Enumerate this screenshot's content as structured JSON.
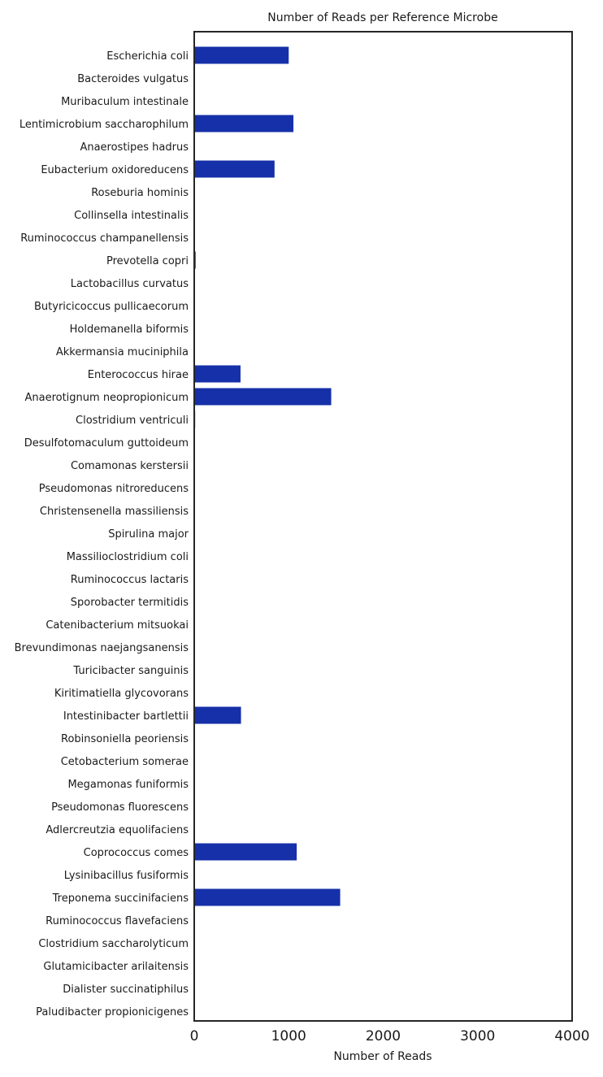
{
  "chart_data": {
    "type": "bar",
    "orientation": "horizontal",
    "title": "Number of Reads per Reference Microbe",
    "xlabel": "Number of Reads",
    "ylabel": "",
    "xlim": [
      0,
      4000
    ],
    "xticks": [
      "0",
      "1000",
      "2000",
      "3000",
      "4000"
    ],
    "grid": false,
    "bar_color": "#1530a8",
    "categories": [
      "Escherichia coli",
      "Bacteroides vulgatus",
      "Muribaculum intestinale",
      "Lentimicrobium saccharophilum",
      "Anaerostipes hadrus",
      "Eubacterium oxidoreducens",
      "Roseburia hominis",
      "Collinsella intestinalis",
      "Ruminococcus champanellensis",
      "Prevotella copri",
      "Lactobacillus curvatus",
      "Butyricicoccus pullicaecorum",
      "Holdemanella biformis",
      "Akkermansia muciniphila",
      "Enterococcus hirae",
      "Anaerotignum neopropionicum",
      "Clostridium ventriculi",
      "Desulfotomaculum guttoideum",
      "Comamonas kerstersii",
      "Pseudomonas nitroreducens",
      "Christensenella massiliensis",
      "Spirulina major",
      "Massilioclostridium coli",
      "Ruminococcus lactaris",
      "Sporobacter termitidis",
      "Catenibacterium mitsuokai",
      "Brevundimonas naejangsanensis",
      "Turicibacter sanguinis",
      "Kiritimatiella glycovorans",
      "Intestinibacter bartlettii",
      "Robinsoniella peoriensis",
      "Cetobacterium somerae",
      "Megamonas funiformis",
      "Pseudomonas fluorescens",
      "Adlercreutzia equolifaciens",
      "Coprococcus comes",
      "Lysinibacillus fusiformis",
      "Treponema succinifaciens",
      "Ruminococcus flavefaciens",
      "Clostridium saccharolyticum",
      "Glutamicibacter arilaitensis",
      "Dialister succinatiphilus",
      "Paludibacter propionicigenes"
    ],
    "values": [
      1000,
      0,
      0,
      1050,
      0,
      850,
      5,
      5,
      5,
      15,
      0,
      0,
      0,
      0,
      490,
      1450,
      10,
      0,
      0,
      0,
      0,
      0,
      0,
      0,
      0,
      0,
      0,
      0,
      0,
      495,
      0,
      0,
      0,
      0,
      0,
      1085,
      0,
      1545,
      0,
      0,
      0,
      0,
      0
    ]
  }
}
